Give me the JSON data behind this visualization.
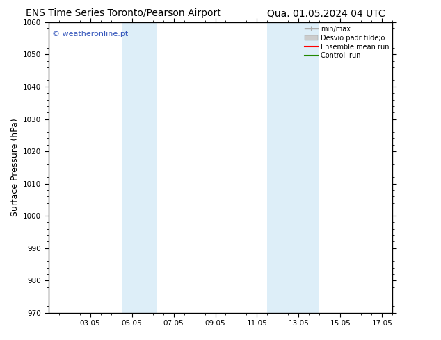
{
  "title_left": "ENS Time Series Toronto/Pearson Airport",
  "title_right": "Qua. 01.05.2024 04 UTC",
  "ylabel": "Surface Pressure (hPa)",
  "ylim": [
    970,
    1060
  ],
  "yticks": [
    970,
    980,
    990,
    1000,
    1010,
    1020,
    1030,
    1040,
    1050,
    1060
  ],
  "xtick_labels": [
    "03.05",
    "05.05",
    "07.05",
    "09.05",
    "11.05",
    "13.05",
    "15.05",
    "17.05"
  ],
  "xtick_positions": [
    2,
    4,
    6,
    8,
    10,
    12,
    14,
    16
  ],
  "xlim": [
    0,
    16.5
  ],
  "shaded_regions": [
    {
      "x_start": 3.5,
      "x_end": 5.2
    },
    {
      "x_start": 10.5,
      "x_end": 13.0
    }
  ],
  "shade_color": "#ddeef8",
  "watermark_text": "© weatheronline.pt",
  "watermark_color": "#3355bb",
  "background_color": "#ffffff",
  "plot_bg_color": "#ffffff",
  "legend_items": [
    {
      "label": "min/max",
      "color": "#aaaaaa",
      "lw": 1.0,
      "type": "line_with_caps"
    },
    {
      "label": "Desvio padr tilde;o",
      "color": "#cccccc",
      "lw": 8,
      "type": "patch"
    },
    {
      "label": "Ensemble mean run",
      "color": "#ff0000",
      "lw": 1.5,
      "type": "line"
    },
    {
      "label": "Controll run",
      "color": "#228800",
      "lw": 1.5,
      "type": "line"
    }
  ],
  "title_fontsize": 10,
  "ylabel_fontsize": 9,
  "tick_fontsize": 7.5,
  "legend_fontsize": 7,
  "watermark_fontsize": 8
}
